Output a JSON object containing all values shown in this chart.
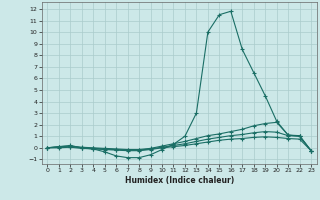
{
  "title": "",
  "xlabel": "Humidex (Indice chaleur)",
  "ylabel": "",
  "bg_color": "#cce8e8",
  "grid_color": "#aacccc",
  "line_color": "#1a6e65",
  "xlim": [
    -0.5,
    23.5
  ],
  "ylim": [
    -1.4,
    12.6
  ],
  "xticks": [
    0,
    1,
    2,
    3,
    4,
    5,
    6,
    7,
    8,
    9,
    10,
    11,
    12,
    13,
    14,
    15,
    16,
    17,
    18,
    19,
    20,
    21,
    22,
    23
  ],
  "yticks": [
    -1,
    0,
    1,
    2,
    3,
    4,
    5,
    6,
    7,
    8,
    9,
    10,
    11,
    12
  ],
  "line1_x": [
    0,
    1,
    2,
    3,
    4,
    5,
    6,
    7,
    8,
    9,
    10,
    11,
    12,
    13,
    14,
    15,
    16,
    17,
    18,
    19,
    20,
    21,
    22,
    23
  ],
  "line1_y": [
    0.0,
    0.1,
    0.2,
    0.0,
    -0.1,
    -0.35,
    -0.7,
    -0.85,
    -0.85,
    -0.6,
    -0.15,
    0.3,
    1.0,
    3.0,
    10.0,
    11.5,
    11.8,
    8.5,
    6.5,
    4.5,
    2.3,
    1.1,
    1.0,
    -0.25
  ],
  "line2_x": [
    0,
    1,
    2,
    3,
    4,
    5,
    6,
    7,
    8,
    9,
    10,
    11,
    12,
    13,
    14,
    15,
    16,
    17,
    18,
    19,
    20,
    21,
    22,
    23
  ],
  "line2_y": [
    0.0,
    0.1,
    0.15,
    0.05,
    0.0,
    -0.05,
    -0.1,
    -0.15,
    -0.15,
    -0.05,
    0.15,
    0.35,
    0.55,
    0.8,
    1.05,
    1.2,
    1.4,
    1.6,
    1.9,
    2.1,
    2.2,
    1.1,
    1.05,
    -0.25
  ],
  "line3_x": [
    0,
    1,
    2,
    3,
    4,
    5,
    6,
    7,
    8,
    9,
    10,
    11,
    12,
    13,
    14,
    15,
    16,
    17,
    18,
    19,
    20,
    21,
    22,
    23
  ],
  "line3_y": [
    0.0,
    0.05,
    0.1,
    0.0,
    -0.05,
    -0.1,
    -0.15,
    -0.2,
    -0.2,
    -0.1,
    0.05,
    0.2,
    0.35,
    0.55,
    0.75,
    0.9,
    1.05,
    1.15,
    1.3,
    1.4,
    1.35,
    1.05,
    1.0,
    -0.25
  ],
  "line4_x": [
    0,
    1,
    2,
    3,
    4,
    5,
    6,
    7,
    8,
    9,
    10,
    11,
    12,
    13,
    14,
    15,
    16,
    17,
    18,
    19,
    20,
    21,
    22,
    23
  ],
  "line4_y": [
    0.0,
    0.0,
    0.05,
    -0.05,
    -0.1,
    -0.15,
    -0.2,
    -0.25,
    -0.25,
    -0.15,
    0.0,
    0.1,
    0.2,
    0.35,
    0.5,
    0.65,
    0.75,
    0.8,
    0.9,
    0.95,
    0.9,
    0.8,
    0.75,
    -0.25
  ],
  "marker": "+",
  "markersize": 3,
  "linewidth": 0.8
}
